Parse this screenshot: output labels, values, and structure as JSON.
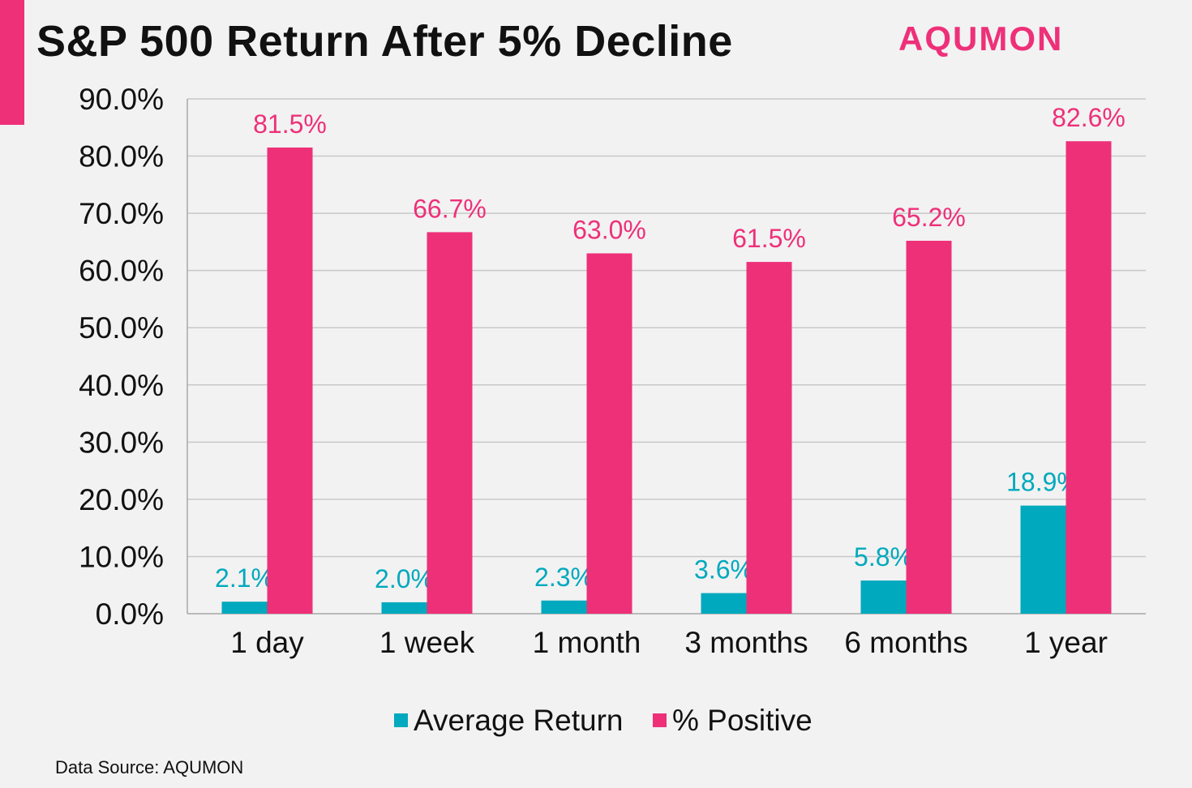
{
  "header": {
    "title": "S&P 500 Return After 5% Decline",
    "brand": "AQUMON"
  },
  "footer": {
    "source": "Data Source: AQUMON"
  },
  "colors": {
    "accent": "#ee3079",
    "series_teal": "#00a9bd",
    "series_pink": "#ee3079",
    "grid": "#c8c8c8",
    "axis_text": "#111111"
  },
  "chart_data": {
    "type": "bar",
    "title": "S&P 500 Return After 5% Decline",
    "categories": [
      "1 day",
      "1 week",
      "1 month",
      "3 months",
      "6 months",
      "1 year"
    ],
    "series": [
      {
        "name": "Average Return",
        "values": [
          2.1,
          2.0,
          2.3,
          3.6,
          5.8,
          18.9
        ],
        "labels": [
          "2.1%",
          "2.0%",
          "2.3%",
          "3.6%",
          "5.8%",
          "18.9%"
        ],
        "color": "#00a9bd"
      },
      {
        "name": "% Positive",
        "values": [
          81.5,
          66.7,
          63.0,
          61.5,
          65.2,
          82.6
        ],
        "labels": [
          "81.5%",
          "66.7%",
          "63.0%",
          "61.5%",
          "65.2%",
          "82.6%"
        ],
        "color": "#ee3079"
      }
    ],
    "yticks": [
      "0.0%",
      "10.0%",
      "20.0%",
      "30.0%",
      "40.0%",
      "50.0%",
      "60.0%",
      "70.0%",
      "80.0%",
      "90.0%"
    ],
    "ylim": [
      0,
      90
    ],
    "xlabel": "",
    "ylabel": "",
    "grid": true,
    "legend_position": "bottom"
  }
}
